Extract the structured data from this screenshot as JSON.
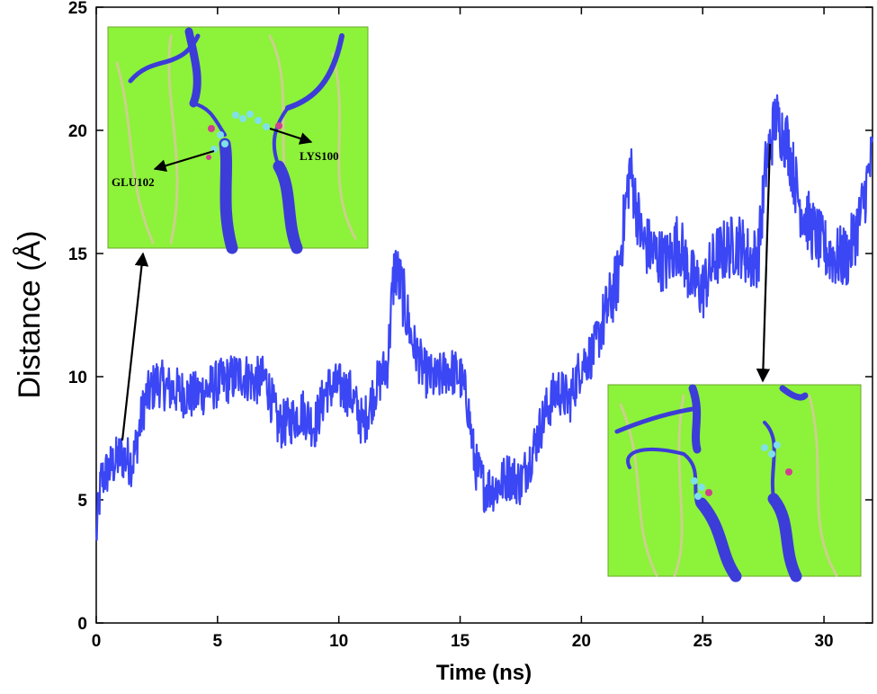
{
  "chart_data": {
    "type": "line",
    "xlabel": "Time (ns)",
    "ylabel": "Distance (Å)",
    "xlim": [
      0,
      32
    ],
    "ylim": [
      0,
      25
    ],
    "x_ticks": [
      0,
      5,
      10,
      15,
      20,
      25,
      30
    ],
    "y_ticks": [
      0,
      5,
      10,
      15,
      20,
      25
    ],
    "grid": false,
    "line_color": "#3b46f5",
    "series": [
      {
        "color": "#3b46f5",
        "x": [
          0,
          0.2,
          0.5,
          1,
          1.5,
          2,
          2.5,
          3,
          4,
          5,
          5.5,
          6,
          6.5,
          7,
          7.5,
          8,
          8.5,
          9,
          9.5,
          10,
          10.5,
          11,
          11.5,
          12,
          12.3,
          12.6,
          13,
          13.5,
          14,
          14.5,
          15,
          15.3,
          15.6,
          16,
          16.5,
          17,
          17.5,
          18,
          18.5,
          19,
          19.5,
          20,
          20.5,
          21,
          21.5,
          22,
          22.5,
          23,
          23.5,
          24,
          24.5,
          25,
          25.5,
          26,
          26.5,
          27,
          27.3,
          27.6,
          28,
          28.5,
          29,
          29.5,
          30,
          30.5,
          31,
          31.5,
          32
        ],
        "y": [
          3.5,
          5.8,
          6.2,
          6.8,
          6.5,
          9.0,
          9.8,
          9.5,
          9.2,
          9.7,
          9.9,
          10.1,
          9.8,
          9.9,
          8.0,
          8.2,
          8.6,
          8.0,
          9.5,
          9.6,
          9.3,
          8.0,
          9.5,
          10.5,
          14.5,
          13.5,
          11.5,
          10.2,
          9.8,
          10.3,
          10.0,
          9.0,
          6.5,
          5.5,
          5.5,
          6.0,
          5.7,
          7.0,
          8.5,
          9.5,
          9.0,
          10.5,
          11.0,
          12.5,
          14.0,
          18.5,
          15.5,
          15.0,
          14.6,
          15.5,
          14.0,
          13.5,
          14.8,
          15.2,
          15.4,
          14.7,
          15.0,
          18.5,
          20.5,
          19.5,
          17.0,
          16.0,
          15.2,
          14.8,
          14.9,
          16.5,
          19.0
        ]
      }
    ]
  },
  "insets": {
    "top_left": {
      "labels": [
        "GLU102",
        "LYS100"
      ],
      "background": "#8df23a",
      "points_to": {
        "time_ns": 1.5,
        "distance_A": 7.0
      }
    },
    "bottom_right": {
      "background": "#8df23a",
      "points_to": {
        "time_ns": 27.5,
        "distance_A": 20.0
      }
    }
  }
}
